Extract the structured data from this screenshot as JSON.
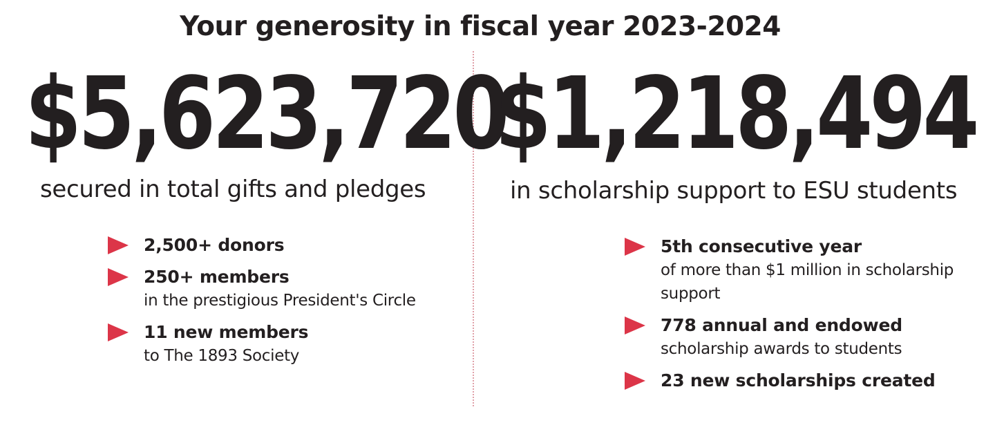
{
  "title": "Your generosity in fiscal year 2023-2024",
  "left": {
    "amount": "$5,623,720",
    "caption": "secured in total gifts and pledges",
    "items": [
      {
        "head": "2,500+ donors",
        "desc": ""
      },
      {
        "head": "250+ members",
        "desc": "in the prestigious President's Circle"
      },
      {
        "head": "11 new members",
        "desc": "to The 1893 Society"
      }
    ]
  },
  "right": {
    "amount": "$1,218,494",
    "caption": "in scholarship support to ESU students",
    "items": [
      {
        "head": "5th consecutive year",
        "desc_line1": "of more than $1 million in scholarship",
        "desc_line2": "support"
      },
      {
        "head": "778 annual and endowed",
        "desc_line1": "scholarship awards to students",
        "desc_line2": ""
      },
      {
        "head": "23 new scholarships created",
        "desc_line1": "",
        "desc_line2": ""
      }
    ]
  },
  "colors": {
    "text": "#231f20",
    "accent": "#dc3548",
    "divider": "#e0a0a8"
  },
  "icons": {
    "bullet": "triangle-right-icon"
  }
}
